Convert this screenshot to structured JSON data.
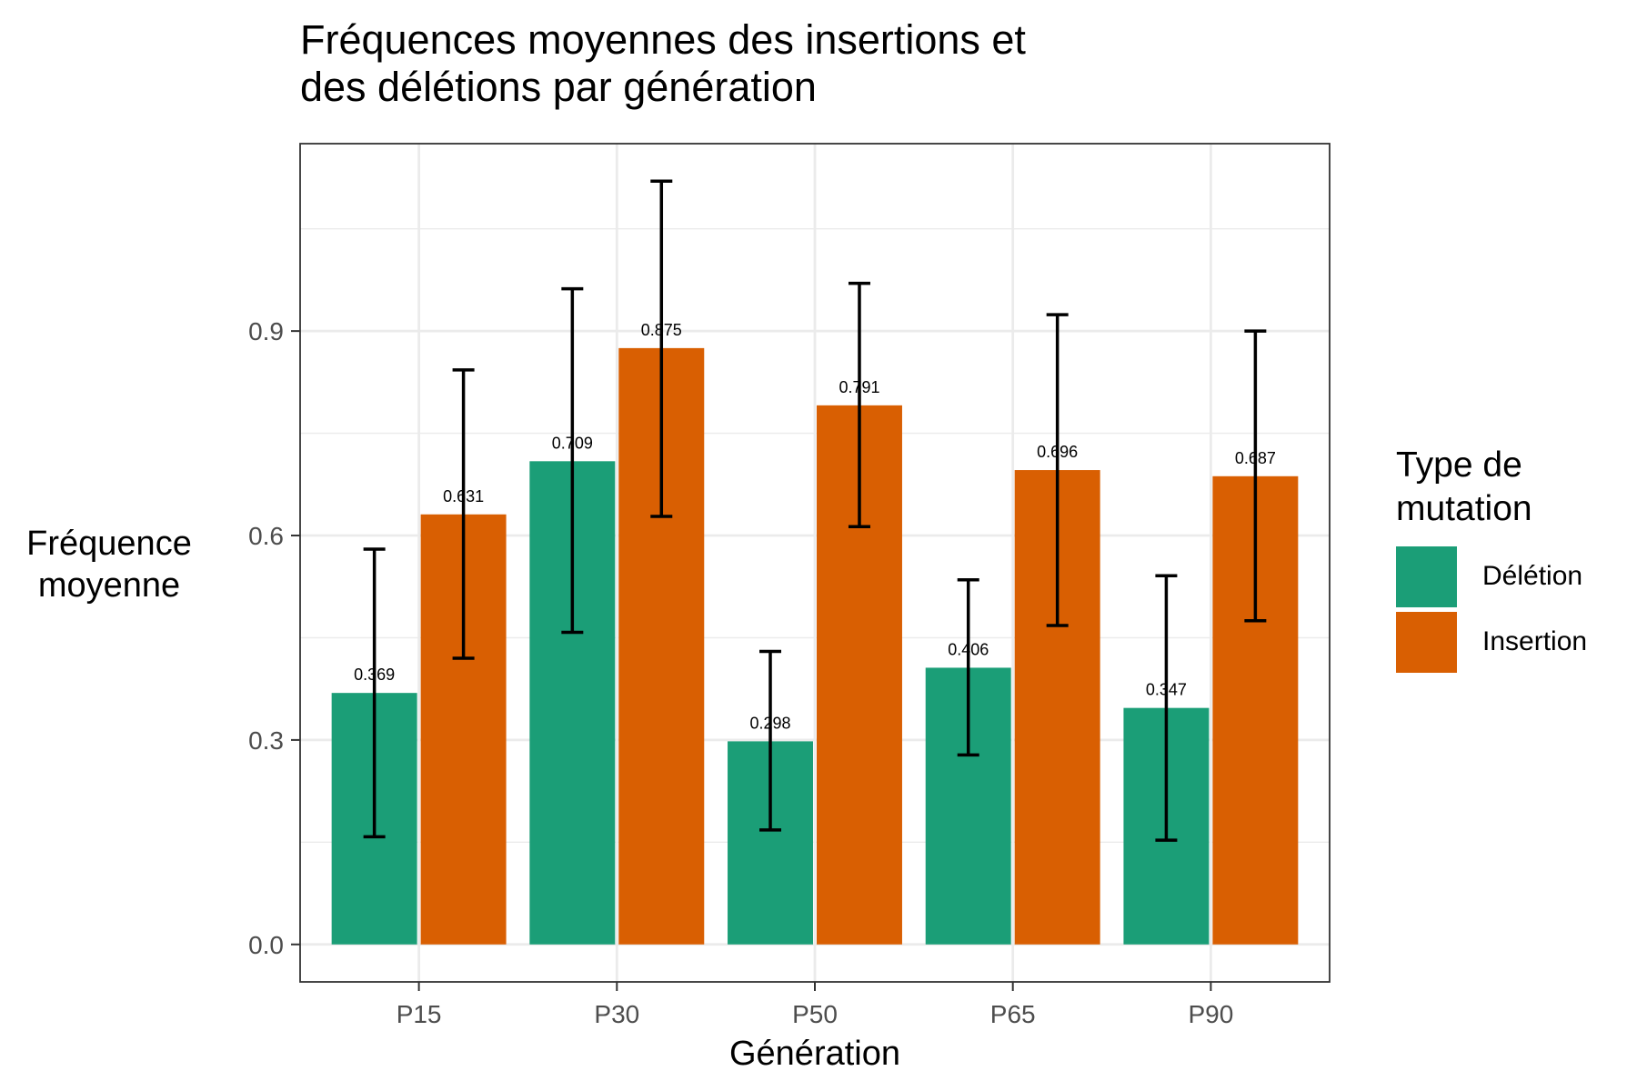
{
  "chart_data": {
    "type": "bar",
    "title_line1": "Fréquences moyennes des insertions et",
    "title_line2": "des délétions par génération",
    "xlabel": "Génération",
    "ylabel_line1": "Fréquence",
    "ylabel_line2": "moyenne",
    "categories": [
      "P15",
      "P30",
      "P50",
      "P65",
      "P90"
    ],
    "ylim": [
      -0.055,
      1.175
    ],
    "yticks": [
      0.0,
      0.3,
      0.6,
      0.9
    ],
    "ytick_labels": [
      "0.0",
      "0.3",
      "0.6",
      "0.9"
    ],
    "minor_gridlines": [
      0.15,
      0.45,
      0.75,
      1.05
    ],
    "grid": true,
    "legend_title_line1": "Type de",
    "legend_title_line2": "mutation",
    "legend_position": "right",
    "series": [
      {
        "name": "Délétion",
        "color": "#1b9e77",
        "values": [
          0.369,
          0.709,
          0.298,
          0.406,
          0.347
        ],
        "labels": [
          "0.369",
          "0.709",
          "0.298",
          "0.406",
          "0.347"
        ],
        "error_low": [
          0.158,
          0.458,
          0.168,
          0.278,
          0.153
        ],
        "error_high": [
          0.58,
          0.962,
          0.43,
          0.535,
          0.541
        ]
      },
      {
        "name": "Insertion",
        "color": "#d95f02",
        "values": [
          0.631,
          0.875,
          0.791,
          0.696,
          0.687
        ],
        "labels": [
          "0.631",
          "0.875",
          "0.791",
          "0.696",
          "0.687"
        ],
        "error_low": [
          0.42,
          0.628,
          0.613,
          0.468,
          0.475
        ],
        "error_high": [
          0.843,
          1.12,
          0.97,
          0.924,
          0.9
        ]
      }
    ]
  }
}
